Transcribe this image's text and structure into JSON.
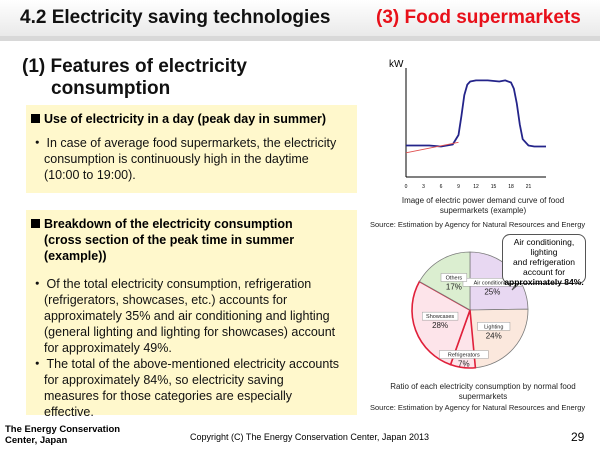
{
  "title": {
    "left": "4.2 Electricity saving technologies",
    "right": "(3) Food supermarkets"
  },
  "section": {
    "heading_line1": "(1) Features of electricity",
    "heading_line2": "consumption"
  },
  "box1": {
    "heading": "Use of electricity in a day (peak day in summer)",
    "bullet": "・",
    "text_l1": "In case of average food supermarkets, the electricity",
    "text_l2": "consumption is continuously high in the daytime",
    "text_l3": "(10:00 to 19:00)."
  },
  "box2": {
    "heading_l1": "Breakdown of the electricity consumption",
    "heading_l2": "(cross section of the peak time in summer",
    "heading_l3": "(example))",
    "bullet": "・",
    "p1_l1": "Of the total electricity consumption, refrigeration",
    "p1_l2": "(refrigerators, showcases, etc.) accounts for",
    "p1_l3": "approximately 35% and air conditioning and lighting",
    "p1_l4": "(general lighting and lighting for showcases) account",
    "p1_l5": "for approximately 49%.",
    "p2_l1": "The total of the above-mentioned electricity accounts",
    "p2_l2": "for approximately 84%, so electricity saving",
    "p2_l3": "measures for those categories are especially",
    "p2_l4": "effective."
  },
  "line_chart": {
    "ylabel": "kW",
    "caption_l1": "Image of electric power demand curve of food",
    "caption_l2": "supermarkets (example)",
    "source": "Source: Estimation by Agency for Natural Resources and Energy"
  },
  "pie_chart": {
    "caption_l1": "Ratio of each electricity consumption by normal food",
    "caption_l2": "supermarkets",
    "source": "Source: Estimation by Agency for Natural Resources and Energy",
    "callout_l1": "Air conditioning, lighting",
    "callout_l2": "and refrigeration",
    "callout_l3": "account for",
    "callout_l4": "approximately 84%."
  },
  "chart_data": [
    {
      "type": "line",
      "title": "Image of electric power demand curve of food supermarkets (example)",
      "ylabel": "kW",
      "xlabel": "",
      "x_ticks": [
        "0",
        "3",
        "6",
        "9",
        "12",
        "15",
        "18",
        "21"
      ],
      "xlim": [
        0,
        24
      ],
      "ylim": [
        0,
        100
      ],
      "series": [
        {
          "name": "demand",
          "color": "#24248a",
          "x": [
            0,
            2,
            4,
            6,
            7,
            8,
            9,
            9.5,
            10,
            10.5,
            11,
            12,
            14,
            16,
            17,
            18,
            18.5,
            19,
            19.5,
            20,
            21,
            22,
            23,
            24
          ],
          "y": [
            30,
            30,
            30,
            29,
            30,
            31,
            40,
            58,
            78,
            88,
            91,
            92,
            92,
            91,
            92,
            90,
            84,
            70,
            50,
            36,
            30,
            29,
            29,
            29
          ]
        },
        {
          "name": "baseline",
          "color": "#e05050",
          "x": [
            0,
            9
          ],
          "y": [
            23,
            33
          ]
        }
      ]
    },
    {
      "type": "pie",
      "title": "Ratio of each electricity consumption by normal food supermarkets",
      "slices": [
        {
          "label": "Air conditioning",
          "value": 25,
          "display": "25%",
          "color": "#e8d8f2"
        },
        {
          "label": "Lighting",
          "value": 24,
          "display": "24%",
          "color": "#fbe8dd"
        },
        {
          "label": "Refrigerators",
          "value": 7,
          "display": "7%",
          "color": "#fde4ea"
        },
        {
          "label": "Showcases",
          "value": 28,
          "display": "28%",
          "color": "#fde4ea"
        },
        {
          "label": "Others",
          "value": 17,
          "display": "17%",
          "color": "#dbeed0"
        }
      ]
    }
  ],
  "footer": {
    "org_l1": "The Energy Conservation",
    "org_l2": "Center, Japan",
    "copyright": "Copyright (C) The Energy Conservation Center, Japan 2013",
    "page": "29"
  }
}
